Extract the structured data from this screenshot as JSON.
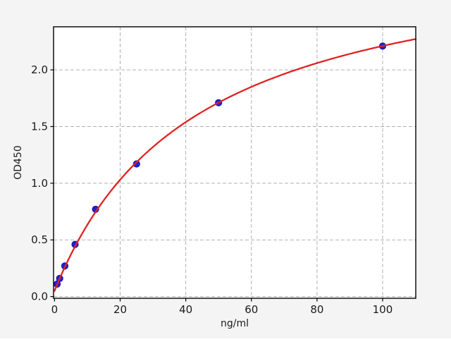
{
  "figure": {
    "background_color": "#f4f4f4",
    "plot_background_color": "#ffffff",
    "grid_color": "#b0b0b0",
    "spine_color": "#000000",
    "text_color": "#1a1a1a"
  },
  "chart_data": {
    "type": "scatter",
    "title": "",
    "xlabel": "ng/ml",
    "ylabel": "OD450",
    "xlim": [
      -0.3,
      110.1
    ],
    "ylim": [
      -0.015,
      2.38
    ],
    "xticks": [
      0,
      20,
      40,
      60,
      80,
      100
    ],
    "xtick_labels": [
      "0",
      "20",
      "40",
      "60",
      "80",
      "100"
    ],
    "yticks": [
      0,
      0.5,
      1.0,
      1.5,
      2.0
    ],
    "ytick_labels": [
      "0.0",
      "0.5",
      "1.0",
      "1.5",
      "2.0"
    ],
    "grid": true,
    "legend": false,
    "series": [
      {
        "name": "standard-points",
        "type": "scatter",
        "marker": "circle",
        "color": "#2121cd",
        "edge_color": "#1616a8",
        "points": [
          {
            "x": 0.781,
            "y": 0.11
          },
          {
            "x": 1.563,
            "y": 0.16
          },
          {
            "x": 3.125,
            "y": 0.27
          },
          {
            "x": 6.25,
            "y": 0.46
          },
          {
            "x": 12.5,
            "y": 0.77
          },
          {
            "x": 25,
            "y": 1.17
          },
          {
            "x": 50,
            "y": 1.71
          },
          {
            "x": 100,
            "y": 2.21
          }
        ]
      },
      {
        "name": "fit-curve",
        "type": "curve",
        "color": "#e02222",
        "fit": {
          "model": "saturation",
          "y0": 0.05,
          "vmax": 3.09,
          "k": 43
        }
      }
    ]
  }
}
